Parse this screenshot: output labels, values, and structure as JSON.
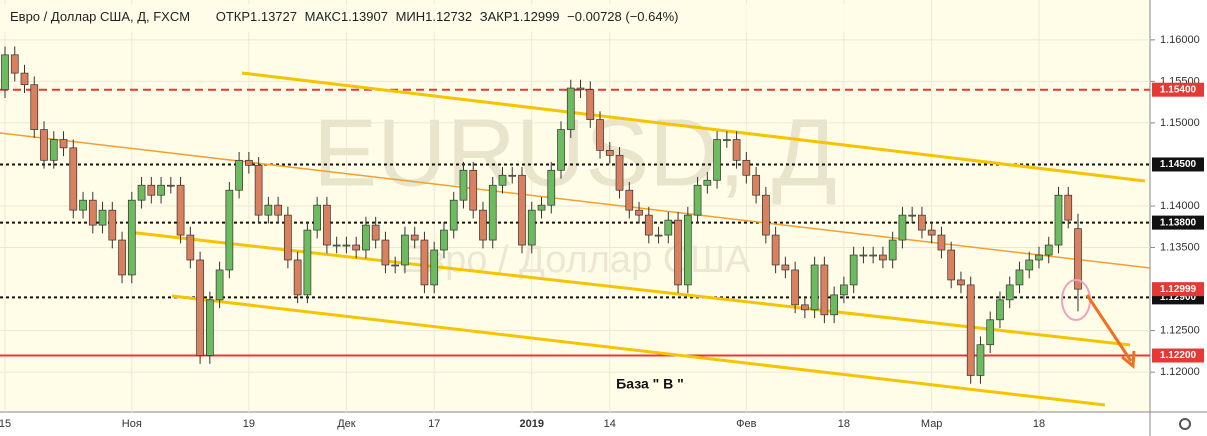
{
  "chart_data": {
    "type": "candlestick",
    "title": "Евро / Доллар США, Д, FXCM",
    "ohlc_labels": [
      "ОТКР",
      "МАКС",
      "МИН",
      "ЗАКР"
    ],
    "change_label": "−0.00728 (−0.64%)",
    "watermark": "EURUSD, Д",
    "watermark_subtitle": "Евро / Доллар США",
    "annotation": "База  \" В \"",
    "up_color": "#6dbb5f",
    "down_color": "#d9805f",
    "grid": true,
    "ylim": [
      1.1152,
      1.1648
    ],
    "yticks": [
      {
        "value": 1.16,
        "label": "1.16000"
      },
      {
        "value": 1.155,
        "label": "1.15500"
      },
      {
        "value": 1.15,
        "label": "1.15000"
      },
      {
        "value": 1.14,
        "label": "1.14000"
      },
      {
        "value": 1.135,
        "label": "1.13500"
      },
      {
        "value": 1.125,
        "label": "1.12500"
      },
      {
        "value": 1.12,
        "label": "1.12000"
      }
    ],
    "levels": [
      {
        "value": 1.154,
        "label": "1.15400",
        "color": "#e53935",
        "style": "dashed"
      },
      {
        "value": 1.145,
        "label": "1.14500",
        "color": "#111111",
        "style": "dotted"
      },
      {
        "value": 1.138,
        "label": "1.13800",
        "color": "#111111",
        "style": "dotted"
      },
      {
        "value": 1.129,
        "label": "1.12900",
        "color": "#111111",
        "style": "dotted"
      },
      {
        "value": 1.122,
        "label": "1.12200",
        "color": "#e53935",
        "style": "solid"
      }
    ],
    "last_price_color": "#e53935",
    "categories": [
      "15",
      null,
      null,
      null,
      null,
      null,
      null,
      null,
      null,
      null,
      null,
      null,
      null,
      "Ноя",
      null,
      null,
      null,
      null,
      null,
      null,
      null,
      null,
      null,
      null,
      null,
      "19",
      null,
      null,
      null,
      null,
      null,
      null,
      null,
      null,
      null,
      "Дек",
      null,
      null,
      null,
      null,
      null,
      null,
      null,
      null,
      "17",
      null,
      null,
      null,
      null,
      null,
      null,
      null,
      null,
      null,
      "2019",
      null,
      null,
      null,
      null,
      null,
      null,
      null,
      "14",
      null,
      null,
      null,
      null,
      null,
      null,
      null,
      null,
      null,
      null,
      null,
      null,
      null,
      "Фев",
      null,
      null,
      null,
      null,
      null,
      null,
      null,
      null,
      null,
      "18",
      null,
      null,
      null,
      null,
      null,
      null,
      null,
      null,
      "Мар",
      null,
      null,
      null,
      null,
      null,
      null,
      null,
      null,
      null,
      null,
      "18",
      null,
      null,
      null,
      null
    ],
    "open": [
      1.154,
      1.1582,
      1.156,
      1.1546,
      1.1492,
      1.1455,
      1.148,
      1.147,
      1.1395,
      1.1407,
      1.1377,
      1.1395,
      1.1359,
      1.1317,
      1.1407,
      1.1425,
      1.1413,
      1.1425,
      1.1425,
      1.1365,
      1.1335,
      1.122,
      1.1287,
      1.1323,
      1.1419,
      1.1455,
      1.1449,
      1.1389,
      1.1401,
      1.1389,
      1.1335,
      1.1293,
      1.1371,
      1.1401,
      1.1353,
      1.1353,
      1.1353,
      1.1347,
      1.1377,
      1.1359,
      1.1329,
      1.1329,
      1.1365,
      1.1359,
      1.1305,
      1.1347,
      1.1371,
      1.1407,
      1.1443,
      1.1395,
      1.1359,
      1.1425,
      1.1437,
      1.1437,
      1.1353,
      1.1395,
      1.1401,
      1.1443,
      1.1492,
      1.1542,
      1.154,
      1.1504,
      1.1467,
      1.1461,
      1.1419,
      1.1395,
      1.1389,
      1.1365,
      1.1365,
      1.1383,
      1.1305,
      1.1389,
      1.1425,
      1.1431,
      1.148,
      1.148,
      1.1455,
      1.1437,
      1.1413,
      1.1365,
      1.1329,
      1.1323,
      1.1281,
      1.1275,
      1.1329,
      1.1269,
      1.1293,
      1.1305,
      1.1341,
      1.1341,
      1.1341,
      1.1335,
      1.1359,
      1.1389,
      1.1389,
      1.1371,
      1.1365,
      1.1347,
      1.1311,
      1.1305,
      1.1196,
      1.1233,
      1.1263,
      1.1287,
      1.1305,
      1.1323,
      1.1335,
      1.1341,
      1.1353,
      1.1413,
      1.13727
    ],
    "high": [
      1.1592,
      1.1592,
      1.157,
      1.1556,
      1.1502,
      1.149,
      1.149,
      1.148,
      1.1417,
      1.1417,
      1.1405,
      1.1405,
      1.1369,
      1.1417,
      1.1435,
      1.1435,
      1.1435,
      1.1435,
      1.1435,
      1.1375,
      1.1345,
      1.1297,
      1.1333,
      1.1429,
      1.1465,
      1.1465,
      1.1459,
      1.1411,
      1.1411,
      1.1399,
      1.1345,
      1.1381,
      1.1411,
      1.1411,
      1.1363,
      1.1363,
      1.1363,
      1.1387,
      1.1387,
      1.1369,
      1.1339,
      1.1375,
      1.1375,
      1.1369,
      1.1357,
      1.1381,
      1.1417,
      1.1453,
      1.1453,
      1.1405,
      1.1435,
      1.1447,
      1.1447,
      1.1447,
      1.1405,
      1.1411,
      1.1453,
      1.1502,
      1.1552,
      1.1552,
      1.155,
      1.1514,
      1.1477,
      1.1471,
      1.1429,
      1.1405,
      1.1399,
      1.1375,
      1.1393,
      1.1393,
      1.1399,
      1.1435,
      1.1441,
      1.149,
      1.149,
      1.149,
      1.1465,
      1.1447,
      1.1423,
      1.1375,
      1.1339,
      1.1333,
      1.1291,
      1.1339,
      1.1339,
      1.1303,
      1.1315,
      1.1351,
      1.1351,
      1.1351,
      1.1351,
      1.1369,
      1.1399,
      1.1399,
      1.1399,
      1.1381,
      1.1375,
      1.1357,
      1.1321,
      1.1315,
      1.1243,
      1.1273,
      1.1297,
      1.1315,
      1.1333,
      1.1345,
      1.1351,
      1.1363,
      1.1423,
      1.1423,
      1.13907
    ],
    "low": [
      1.153,
      1.155,
      1.1536,
      1.1482,
      1.1445,
      1.1445,
      1.146,
      1.1385,
      1.1385,
      1.1367,
      1.1367,
      1.1349,
      1.1307,
      1.1307,
      1.1397,
      1.1403,
      1.1403,
      1.1415,
      1.1355,
      1.1325,
      1.121,
      1.121,
      1.1277,
      1.1313,
      1.1409,
      1.1439,
      1.1379,
      1.1379,
      1.1379,
      1.1325,
      1.1283,
      1.1283,
      1.1361,
      1.1343,
      1.1343,
      1.1343,
      1.1337,
      1.1337,
      1.1349,
      1.1319,
      1.1319,
      1.1319,
      1.1349,
      1.1295,
      1.1295,
      1.1337,
      1.1361,
      1.1397,
      1.1385,
      1.1349,
      1.1349,
      1.1415,
      1.1427,
      1.1343,
      1.1343,
      1.1385,
      1.1391,
      1.1433,
      1.1482,
      1.153,
      1.1494,
      1.1457,
      1.1451,
      1.1409,
      1.1385,
      1.1379,
      1.1355,
      1.1355,
      1.1355,
      1.1295,
      1.1295,
      1.1379,
      1.1415,
      1.1421,
      1.147,
      1.1445,
      1.1427,
      1.1403,
      1.1355,
      1.1319,
      1.1313,
      1.1271,
      1.1265,
      1.1265,
      1.1259,
      1.1259,
      1.1283,
      1.1295,
      1.1331,
      1.1331,
      1.1325,
      1.1325,
      1.1349,
      1.1379,
      1.1361,
      1.1355,
      1.1337,
      1.1301,
      1.1295,
      1.1186,
      1.1186,
      1.1223,
      1.1253,
      1.1277,
      1.1295,
      1.1313,
      1.1325,
      1.1331,
      1.1343,
      1.1373,
      1.12732
    ],
    "close": [
      1.1582,
      1.156,
      1.1546,
      1.1492,
      1.1455,
      1.148,
      1.147,
      1.1395,
      1.1407,
      1.1377,
      1.1395,
      1.1359,
      1.1317,
      1.1407,
      1.1425,
      1.1413,
      1.1425,
      1.1425,
      1.1365,
      1.1335,
      1.122,
      1.1287,
      1.1323,
      1.1419,
      1.1455,
      1.1449,
      1.1389,
      1.1401,
      1.1389,
      1.1335,
      1.1293,
      1.1371,
      1.1401,
      1.1353,
      1.1353,
      1.1353,
      1.1347,
      1.1377,
      1.1359,
      1.1329,
      1.1329,
      1.1365,
      1.1359,
      1.1305,
      1.1347,
      1.1371,
      1.1407,
      1.1443,
      1.1395,
      1.1359,
      1.1425,
      1.1437,
      1.1437,
      1.1353,
      1.1395,
      1.1401,
      1.1443,
      1.1492,
      1.1542,
      1.154,
      1.1504,
      1.1467,
      1.1461,
      1.1419,
      1.1395,
      1.1389,
      1.1365,
      1.1365,
      1.1383,
      1.1305,
      1.1389,
      1.1425,
      1.1431,
      1.148,
      1.148,
      1.1455,
      1.1437,
      1.1413,
      1.1365,
      1.1329,
      1.1323,
      1.1281,
      1.1275,
      1.1329,
      1.1269,
      1.1293,
      1.1305,
      1.1341,
      1.1341,
      1.1341,
      1.1335,
      1.1359,
      1.1389,
      1.1389,
      1.1371,
      1.1365,
      1.1347,
      1.1311,
      1.1305,
      1.1196,
      1.1233,
      1.1263,
      1.1287,
      1.1305,
      1.1323,
      1.1335,
      1.1341,
      1.1353,
      1.1413,
      1.1383,
      1.12999
    ]
  }
}
